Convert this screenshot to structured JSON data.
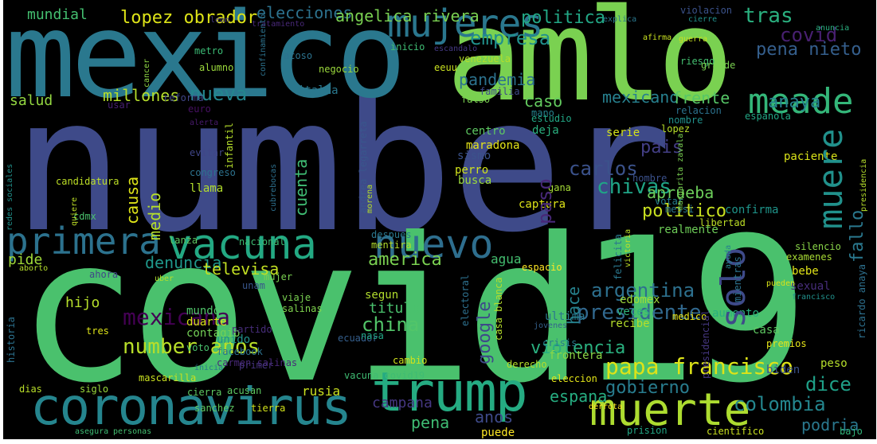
{
  "words": [
    {
      "text": "number",
      "color": "#3e4a89"
    },
    {
      "text": "covid19",
      "color": "#4ac16d"
    },
    {
      "text": "mexico",
      "color": "#2a788e"
    },
    {
      "text": "amlo",
      "color": "#7ad151"
    },
    {
      "text": "coronavirus",
      "color": "#25858e"
    },
    {
      "text": "primera",
      "color": "#2c728e"
    },
    {
      "text": "vacuna",
      "color": "#23a983"
    },
    {
      "text": "nuevo",
      "color": "#2e6e8e"
    },
    {
      "text": "mujeres",
      "color": "#2a778e"
    },
    {
      "text": "meade",
      "color": "#34b679"
    },
    {
      "text": "trump",
      "color": "#25ab82"
    },
    {
      "text": "muerte",
      "color": "#addc30"
    },
    {
      "text": "tras",
      "color": "#2ab07f"
    },
    {
      "text": "covid",
      "color": "#482071"
    },
    {
      "text": "pena nieto",
      "color": "#355f8d"
    },
    {
      "text": "nueva",
      "color": "#24868e"
    },
    {
      "text": "politica",
      "color": "#22a785"
    },
    {
      "text": "elecciones",
      "color": "#2c728e"
    },
    {
      "text": "angelica rivera",
      "color": "#7ad151"
    },
    {
      "text": "lopez obrador",
      "color": "#dde318"
    },
    {
      "text": "mundial",
      "color": "#44bf70"
    },
    {
      "text": "empresa",
      "color": "#21918c"
    },
    {
      "text": "salud",
      "color": "#93d741"
    },
    {
      "text": "millones",
      "color": "#b5de2b"
    },
    {
      "text": "pandemia",
      "color": "#2c728e"
    },
    {
      "text": "caso",
      "color": "#63cb5f"
    },
    {
      "text": "mexicano",
      "color": "#27808e"
    },
    {
      "text": "frente",
      "color": "#56c667"
    },
    {
      "text": "anaya",
      "color": "#26828e"
    },
    {
      "text": "pais",
      "color": "#433e85"
    },
    {
      "text": "carlos",
      "color": "#3b528b"
    },
    {
      "text": "chivas",
      "color": "#20a486"
    },
    {
      "text": "aprueba",
      "color": "#6ccd5a"
    },
    {
      "text": "politico",
      "color": "#c8e020"
    },
    {
      "text": "pide",
      "color": "#a0da39"
    },
    {
      "text": "denuncia",
      "color": "#1f988b"
    },
    {
      "text": "televisa",
      "color": "#c2df23"
    },
    {
      "text": "america",
      "color": "#7ad151"
    },
    {
      "text": "agua",
      "color": "#44bf70"
    },
    {
      "text": "argentina",
      "color": "#2d708e"
    },
    {
      "text": "presidente",
      "color": "#31688e"
    },
    {
      "text": "mexicana",
      "color": "#440154"
    },
    {
      "text": "china",
      "color": "#52c569"
    },
    {
      "text": "number anos",
      "color": "#b8de29"
    },
    {
      "text": "violencia",
      "color": "#2ab07f"
    },
    {
      "text": "papa francisco",
      "color": "#dde318"
    },
    {
      "text": "gobierno",
      "color": "#287c8e"
    },
    {
      "text": "dice",
      "color": "#1fa088"
    },
    {
      "text": "colombia",
      "color": "#24868e"
    },
    {
      "text": "podria",
      "color": "#2a788e"
    },
    {
      "text": "espana",
      "color": "#26ad81"
    },
    {
      "text": "anos",
      "color": "#3e4a89"
    },
    {
      "text": "campana",
      "color": "#453781"
    },
    {
      "text": "pena",
      "color": "#3fbc73"
    },
    {
      "text": "puede",
      "color": "#fde725"
    },
    {
      "text": "rusia",
      "color": "#cae11f"
    },
    {
      "text": "hijo",
      "color": "#b5de2b"
    },
    {
      "text": "mundo",
      "color": "#50c46a"
    },
    {
      "text": "duarte",
      "color": "#d8e219"
    },
    {
      "text": "contagio",
      "color": "#73d056"
    },
    {
      "text": "unido",
      "color": "#21918c"
    },
    {
      "text": "voto",
      "color": "#4ac16d"
    },
    {
      "text": "facebook",
      "color": "#2c728e"
    },
    {
      "text": "carmen salinas",
      "color": "#482878"
    },
    {
      "text": "vacuna covid19",
      "color": "#3fbc73"
    },
    {
      "text": "mascarilla",
      "color": "#c8e020"
    },
    {
      "text": "dias",
      "color": "#b8de29"
    },
    {
      "text": "siglo",
      "color": "#9bd93c"
    },
    {
      "text": "cierra",
      "color": "#5ec962"
    },
    {
      "text": "acusan",
      "color": "#5ec962"
    },
    {
      "text": "titulo",
      "color": "#4ac16d"
    },
    {
      "text": "segun",
      "color": "#b2dd2d"
    },
    {
      "text": "viaje",
      "color": "#7ad151"
    },
    {
      "text": "salinas",
      "color": "#7fd34e"
    },
    {
      "text": "ultima",
      "color": "#2a788e"
    },
    {
      "text": "crisis",
      "color": "#287c8e"
    },
    {
      "text": "ecuador",
      "color": "#355f8d"
    },
    {
      "text": "cambio",
      "color": "#d0e11c"
    },
    {
      "text": "derecho",
      "color": "#b5de2b"
    },
    {
      "text": "eleccion",
      "color": "#e2e418"
    },
    {
      "text": "frontera",
      "color": "#8bd646"
    },
    {
      "text": "edomex",
      "color": "#9fda3a"
    },
    {
      "text": "veces",
      "color": "#2fb47c"
    },
    {
      "text": "recibe",
      "color": "#b5de2b"
    },
    {
      "text": "aumento",
      "color": "#29af7f"
    },
    {
      "text": "casa",
      "color": "#5ec962"
    },
    {
      "text": "premios",
      "color": "#e5e419"
    },
    {
      "text": "medico",
      "color": "#e7e419"
    },
    {
      "text": "biden",
      "color": "#3b528b"
    },
    {
      "text": "peso",
      "color": "#b5de2b"
    },
    {
      "text": "sanchez",
      "color": "#5ec962"
    },
    {
      "text": "tierra",
      "color": "#d2e21b"
    },
    {
      "text": "prision",
      "color": "#22a785"
    },
    {
      "text": "cientifico",
      "color": "#c8e020"
    },
    {
      "text": "personas",
      "color": "#44bf70"
    },
    {
      "text": "asegura",
      "color": "#3dbc74"
    },
    {
      "text": "bajo",
      "color": "#31b57b"
    },
    {
      "text": "derrota",
      "color": "#fde725"
    },
    {
      "text": "messi",
      "color": "#2a788e"
    },
    {
      "text": "libertad",
      "color": "#bddf26"
    },
    {
      "text": "realmente",
      "color": "#6ece58"
    },
    {
      "text": "confirma",
      "color": "#1f958b"
    },
    {
      "text": "silencio",
      "color": "#89d548"
    },
    {
      "text": "examenes",
      "color": "#a8db34"
    },
    {
      "text": "bebe",
      "color": "#e2e418"
    },
    {
      "text": "sexual",
      "color": "#472d7b"
    },
    {
      "text": "francisco",
      "color": "#21918c"
    },
    {
      "text": "serie",
      "color": "#d5e21a"
    },
    {
      "text": "votar",
      "color": "#26818e"
    },
    {
      "text": "hombre",
      "color": "#3b518b"
    },
    {
      "text": "paciente",
      "color": "#d8e219"
    },
    {
      "text": "gana",
      "color": "#a5db36"
    },
    {
      "text": "captura",
      "color": "#dde318"
    },
    {
      "text": "busca",
      "color": "#9bd93c"
    },
    {
      "text": "perro",
      "color": "#d0e11c"
    },
    {
      "text": "sismo",
      "color": "#3b528b"
    },
    {
      "text": "maradona",
      "color": "#e5e419"
    },
    {
      "text": "centro",
      "color": "#5ec962"
    },
    {
      "text": "estudio",
      "color": "#22a785"
    },
    {
      "text": "deja",
      "color": "#2ab07f"
    },
    {
      "text": "mano",
      "color": "#25848e"
    },
    {
      "text": "lopez",
      "color": "#b8de29"
    },
    {
      "text": "nombre",
      "color": "#21918c"
    },
    {
      "text": "relacion",
      "color": "#2c728e"
    },
    {
      "text": "espanola",
      "color": "#22a785"
    },
    {
      "text": "reforma",
      "color": "#404688"
    },
    {
      "text": "italia",
      "color": "#2a788e"
    },
    {
      "text": "familia",
      "color": "#3e4a89"
    },
    {
      "text": "falso",
      "color": "#7ad151"
    },
    {
      "text": "usar",
      "color": "#482071"
    },
    {
      "text": "euro",
      "color": "#471063"
    },
    {
      "text": "alerta",
      "color": "#481a6c"
    },
    {
      "text": "evitar",
      "color": "#404688"
    },
    {
      "text": "congreso",
      "color": "#2c728e"
    },
    {
      "text": "llama",
      "color": "#b2dd2d"
    },
    {
      "text": "candidatura",
      "color": "#bddf26"
    },
    {
      "text": "cdmx",
      "color": "#4ac16d"
    },
    {
      "text": "lanza",
      "color": "#5ec962"
    },
    {
      "text": "nacional",
      "color": "#3fbc73"
    },
    {
      "text": "aborto",
      "color": "#b5de2b"
    },
    {
      "text": "ahora",
      "color": "#404688"
    },
    {
      "text": "uber",
      "color": "#b5de2b"
    },
    {
      "text": "unam",
      "color": "#39568c"
    },
    {
      "text": "mujer",
      "color": "#7ad151"
    },
    {
      "text": "tres",
      "color": "#dde318"
    },
    {
      "text": "inicia",
      "color": "#2a788e"
    },
    {
      "text": "primer",
      "color": "#46337e"
    },
    {
      "text": "partido",
      "color": "#472d7b"
    },
    {
      "text": "espacio",
      "color": "#fde725"
    },
    {
      "text": "jovenes",
      "color": "#34618d"
    },
    {
      "text": "nasa",
      "color": "#22a785"
    },
    {
      "text": "despues",
      "color": "#2a788e"
    },
    {
      "text": "mentira",
      "color": "#b2dd2d"
    },
    {
      "text": "acoso",
      "color": "#2c728e"
    },
    {
      "text": "metro",
      "color": "#3bbb75"
    },
    {
      "text": "alumno",
      "color": "#9bd93c"
    },
    {
      "text": "leon",
      "color": "#443983"
    },
    {
      "text": "tratamiento",
      "color": "#482878"
    },
    {
      "text": "negocio",
      "color": "#9bd93c"
    },
    {
      "text": "escandalo",
      "color": "#443983"
    },
    {
      "text": "inicio",
      "color": "#3fbc73"
    },
    {
      "text": "venezuela",
      "color": "#b5de2b"
    },
    {
      "text": "riesgo",
      "color": "#44bf70"
    },
    {
      "text": "grande",
      "color": "#7ad151"
    },
    {
      "text": "eeuu",
      "color": "#c8e020"
    },
    {
      "text": "afirma",
      "color": "#c8e020"
    },
    {
      "text": "guerra",
      "color": "#c8e020"
    },
    {
      "text": "explica",
      "color": "#2a788e"
    },
    {
      "text": "violacion",
      "color": "#3b528b"
    },
    {
      "text": "cierre",
      "color": "#21918c"
    },
    {
      "text": "anuncia",
      "color": "#2ab07f"
    },
    {
      "text": "pueden",
      "color": "#d8e219"
    },
    {
      "text": "muere",
      "color": "#21918c"
    },
    {
      "text": "solo",
      "color": "#3e4a89"
    },
    {
      "text": "paso",
      "color": "#482878"
    },
    {
      "text": "fallo",
      "color": "#2a788e"
    },
    {
      "text": "cuenta",
      "color": "#3fbc73"
    },
    {
      "text": "causa",
      "color": "#dde318"
    },
    {
      "text": "medio",
      "color": "#b5de2b"
    },
    {
      "text": "google",
      "color": "#3e4a89"
    },
    {
      "text": "hace",
      "color": "#26828e"
    },
    {
      "text": "infantil",
      "color": "#b5de2b"
    },
    {
      "text": "quiere",
      "color": "#bddf26"
    },
    {
      "text": "redes sociales",
      "color": "#21918c"
    },
    {
      "text": "cubrebocas",
      "color": "#2d708e"
    },
    {
      "text": "andrea legarreta",
      "color": "#39568c"
    },
    {
      "text": "morena",
      "color": "#b5de2b"
    },
    {
      "text": "margarita zavala",
      "color": "#7ad151"
    },
    {
      "text": "presidencia",
      "color": "#b5de2b"
    },
    {
      "text": "felicita",
      "color": "#2a788e"
    },
    {
      "text": "victoria",
      "color": "#bddf26"
    },
    {
      "text": "ayuda",
      "color": "#26828e"
    },
    {
      "text": "mientras",
      "color": "#2c728e"
    },
    {
      "text": "electoral",
      "color": "#2d708e"
    },
    {
      "text": "casa blanca",
      "color": "#b5de2b"
    },
    {
      "text": "historia",
      "color": "#2c728e"
    },
    {
      "text": "presidencial",
      "color": "#453781"
    },
    {
      "text": "ricardo anaya",
      "color": "#2d708e"
    },
    {
      "text": "cancer",
      "color": "#8fd744"
    },
    {
      "text": "confinamiento",
      "color": "#2c728e"
    }
  ]
}
